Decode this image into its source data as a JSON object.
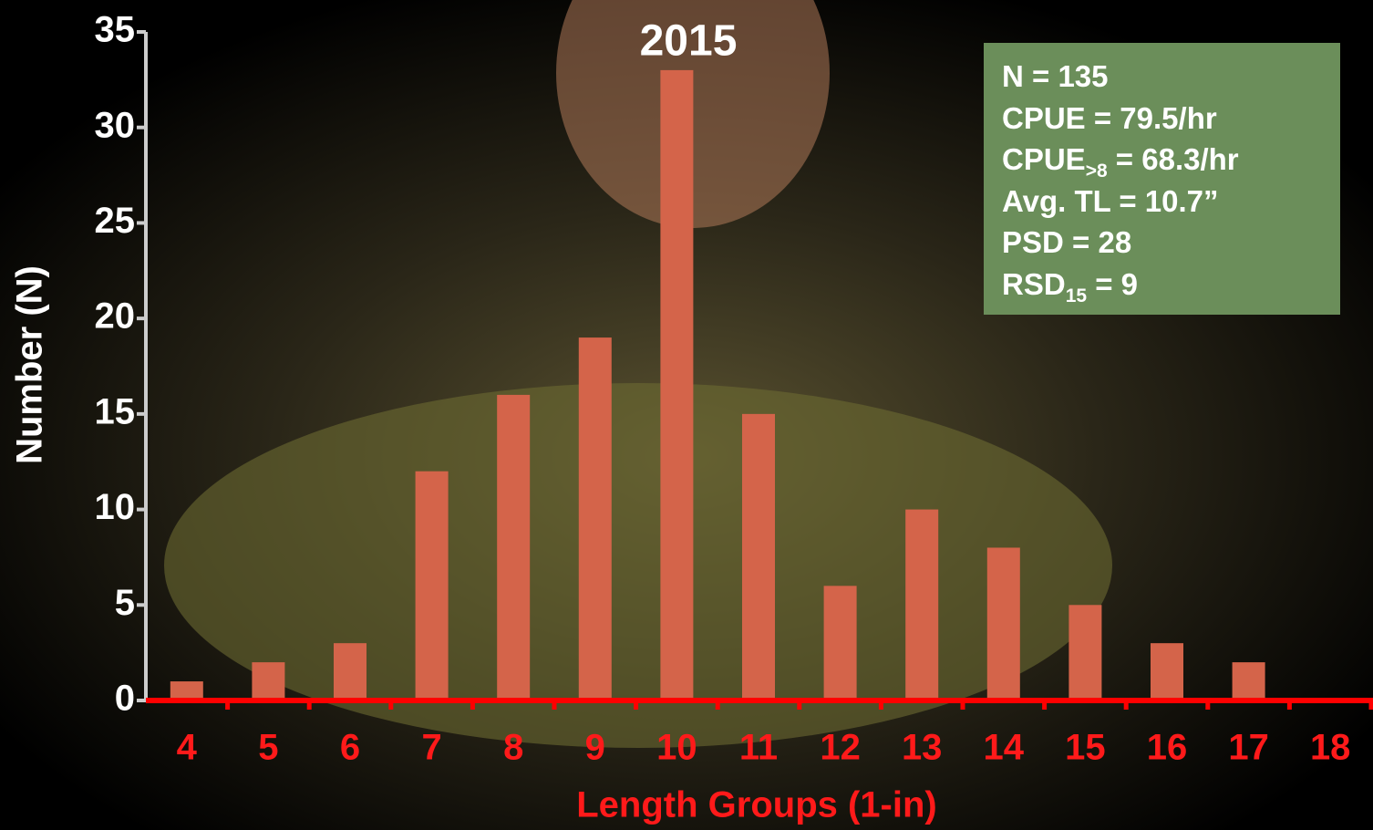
{
  "chart_data": {
    "type": "bar",
    "title": "2015",
    "x_label": "Length Groups (1-in)",
    "y_label": "Number (N)",
    "categories": [
      "4",
      "5",
      "6",
      "7",
      "8",
      "9",
      "10",
      "11",
      "12",
      "13",
      "14",
      "15",
      "16",
      "17",
      "18"
    ],
    "values": [
      1,
      2,
      3,
      12,
      16,
      19,
      33,
      15,
      6,
      10,
      8,
      5,
      3,
      2,
      0
    ],
    "color": "#d4644a",
    "ylim": [
      0,
      35
    ],
    "yticks": [
      0,
      5,
      10,
      15,
      20,
      25,
      30,
      35
    ],
    "grid": false
  },
  "stats": [
    {
      "text": "N = 135"
    },
    {
      "text": "CPUE = 79.5/hr"
    },
    {
      "text": "CPUE",
      "sub": ">8",
      "after": " = 68.3/hr"
    },
    {
      "text": "Avg. TL = 10.7”"
    },
    {
      "text": "PSD = 28"
    },
    {
      "text": "RSD",
      "sub": "15",
      "after": " = 9"
    }
  ]
}
